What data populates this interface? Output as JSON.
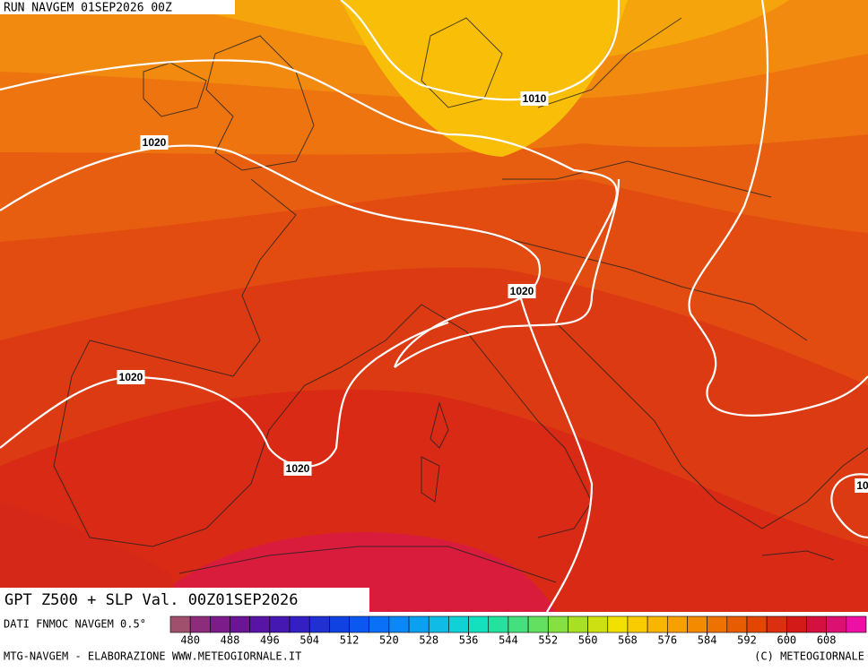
{
  "header": "RUN NAVGEM 01SEP2026 00Z",
  "isobar_labels": [
    "1010",
    "1020",
    "1020",
    "1020",
    "1020",
    "10"
  ],
  "title": "GPT Z500 + SLP Val. 00Z01SEP2026",
  "source": "DATI FNMOC NAVGEM 0.5°",
  "colorbar": {
    "ticks": [
      480,
      488,
      496,
      504,
      512,
      520,
      528,
      536,
      544,
      552,
      560,
      568,
      576,
      584,
      592,
      600,
      608
    ],
    "colors": [
      "#a0506c",
      "#8e2c7c",
      "#7c1c8a",
      "#6a1496",
      "#5814a4",
      "#4618b2",
      "#3420c2",
      "#2030d2",
      "#1042e2",
      "#0a58f0",
      "#0a70f8",
      "#0a88f8",
      "#0aa2f0",
      "#10bce6",
      "#10d2d6",
      "#14e0be",
      "#24e29e",
      "#44e07e",
      "#64e060",
      "#86e042",
      "#a8e024",
      "#cce012",
      "#f2e000",
      "#f8cc00",
      "#f8b600",
      "#f8a000",
      "#f48a00",
      "#ee7200",
      "#e85c00",
      "#e24600",
      "#da3010",
      "#d41a18",
      "#d41040",
      "#dc1070",
      "#ec10a4"
    ]
  },
  "footer_left": "MTG-NAVGEM - ELABORAZIONE WWW.METEOGIORNALE.IT",
  "footer_right": "(C) METEOGIORNALE"
}
